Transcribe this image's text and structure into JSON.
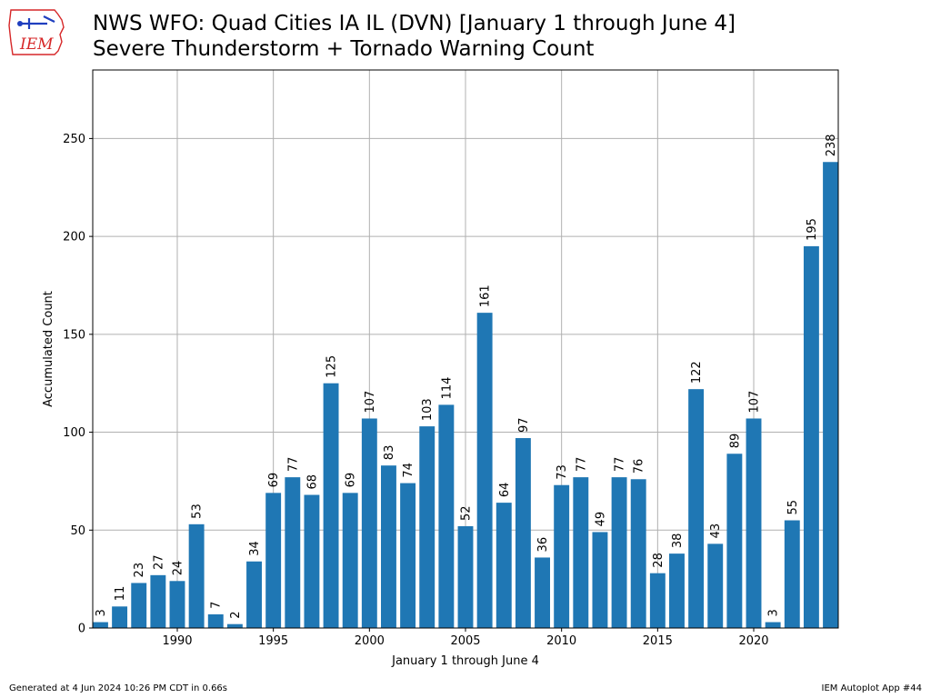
{
  "logo": {
    "text": "IEM"
  },
  "title": {
    "line1": "NWS WFO: Quad Cities IA IL (DVN) [January 1 through June 4]",
    "line2": "Severe Thunderstorm + Tornado Warning Count"
  },
  "footer": {
    "left": "Generated at 4 Jun 2024 10:26 PM CDT in 0.66s",
    "right": "IEM Autoplot App #44"
  },
  "colors": {
    "bar": "#1f77b4",
    "grid": "#b0b0b0",
    "logo_red": "#d62728",
    "logo_blue": "#1f3fbf"
  },
  "chart_data": {
    "type": "bar",
    "xlabel": "January 1 through June 4",
    "ylabel": "Accumulated Count",
    "x": [
      1986,
      1987,
      1988,
      1989,
      1990,
      1991,
      1992,
      1993,
      1994,
      1995,
      1996,
      1997,
      1998,
      1999,
      2000,
      2001,
      2002,
      2003,
      2004,
      2005,
      2006,
      2007,
      2008,
      2009,
      2010,
      2011,
      2012,
      2013,
      2014,
      2015,
      2016,
      2017,
      2018,
      2019,
      2020,
      2021,
      2022,
      2023,
      2024
    ],
    "values": [
      3,
      11,
      23,
      27,
      24,
      53,
      7,
      2,
      34,
      69,
      77,
      68,
      125,
      69,
      107,
      83,
      74,
      103,
      114,
      52,
      161,
      64,
      97,
      36,
      73,
      77,
      49,
      77,
      76,
      28,
      38,
      122,
      43,
      89,
      107,
      3,
      55,
      195,
      238
    ],
    "xticks": [
      1990,
      1995,
      2000,
      2005,
      2010,
      2015,
      2020
    ],
    "yticks": [
      0,
      50,
      100,
      150,
      200,
      250
    ],
    "xlim": [
      1985.6,
      2024.4
    ],
    "ylim": [
      0,
      285
    ],
    "grid": true
  }
}
